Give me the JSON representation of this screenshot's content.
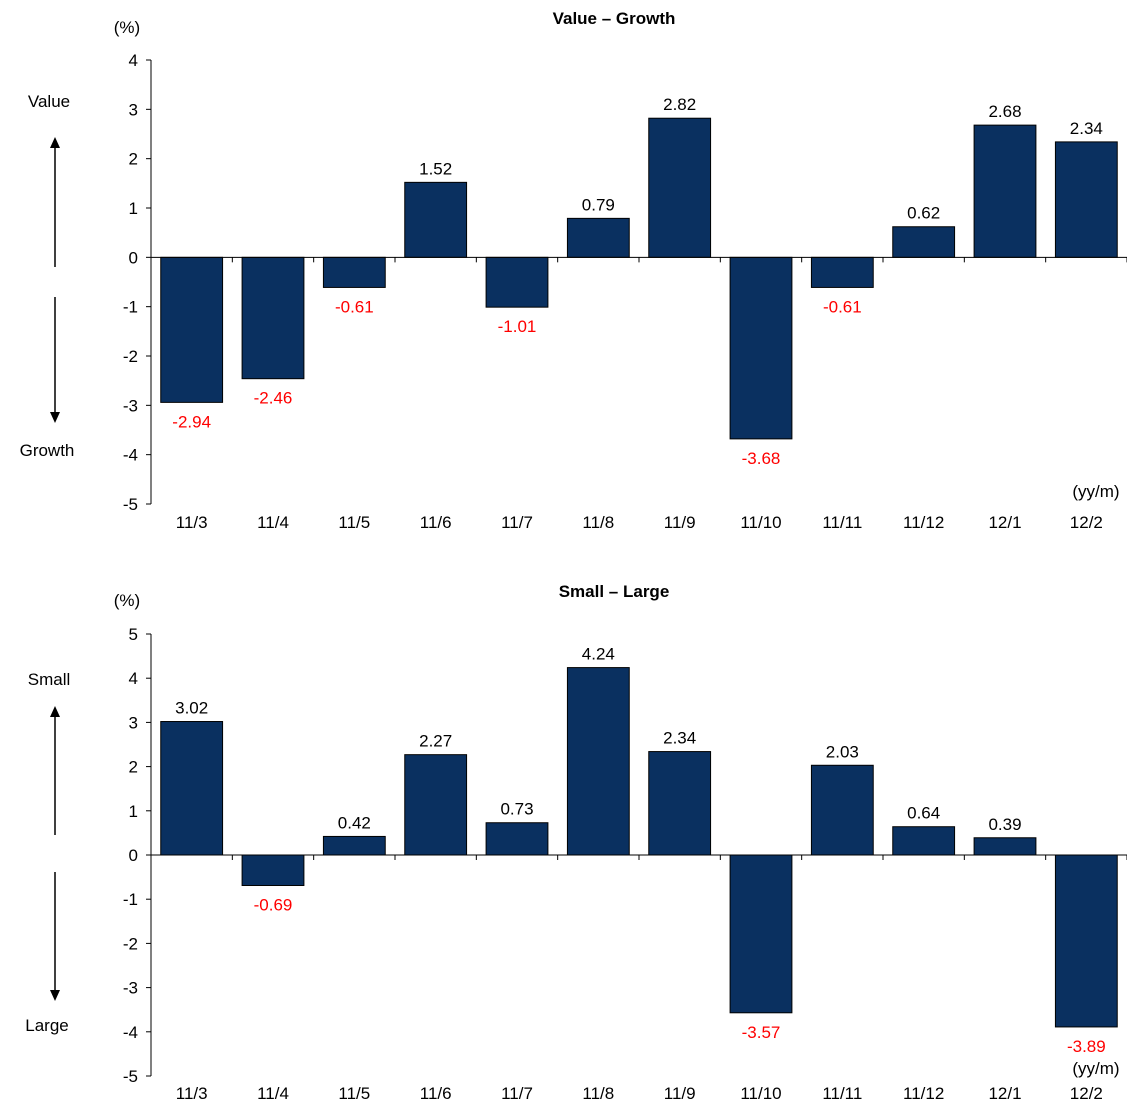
{
  "chart_data": [
    {
      "type": "bar",
      "title": "Value – Growth",
      "unit_label": "(%)",
      "x_unit_label": "(yy/m)",
      "upper_side_label": "Value",
      "lower_side_label": "Growth",
      "categories": [
        "11/3",
        "11/4",
        "11/5",
        "11/6",
        "11/7",
        "11/8",
        "11/9",
        "11/10",
        "11/11",
        "11/12",
        "12/1",
        "12/2"
      ],
      "values": [
        -2.94,
        -2.46,
        -0.61,
        1.52,
        -1.01,
        0.79,
        2.82,
        -3.68,
        -0.61,
        0.62,
        2.68,
        2.34
      ],
      "value_labels": [
        "-2.94",
        "-2.46",
        "-0.61",
        "1.52",
        "-1.01",
        "0.79",
        "2.82",
        "-3.68",
        "-0.61",
        "0.62",
        "2.68",
        "2.34"
      ],
      "ylim": [
        -5,
        4
      ],
      "yticks": [
        4,
        3,
        2,
        1,
        0,
        -1,
        -2,
        -3,
        -4,
        -5
      ],
      "ytick_labels": [
        "4",
        "3",
        "2",
        "1",
        "0",
        "-1",
        "-2",
        "-3",
        "-4",
        "-5"
      ],
      "grid": false,
      "legend": "none",
      "bar_color": "#0a3060",
      "negative_label_color": "#ff0000",
      "positive_label_color": "#000000"
    },
    {
      "type": "bar",
      "title": "Small – Large",
      "unit_label": "(%)",
      "x_unit_label": "(yy/m)",
      "upper_side_label": "Small",
      "lower_side_label": "Large",
      "categories": [
        "11/3",
        "11/4",
        "11/5",
        "11/6",
        "11/7",
        "11/8",
        "11/9",
        "11/10",
        "11/11",
        "11/12",
        "12/1",
        "12/2"
      ],
      "values": [
        3.02,
        -0.69,
        0.42,
        2.27,
        0.73,
        4.24,
        2.34,
        -3.57,
        2.03,
        0.64,
        0.39,
        -3.89
      ],
      "value_labels": [
        "3.02",
        "-0.69",
        "0.42",
        "2.27",
        "0.73",
        "4.24",
        "2.34",
        "-3.57",
        "2.03",
        "0.64",
        "0.39",
        "-3.89"
      ],
      "ylim": [
        -5,
        5
      ],
      "yticks": [
        5,
        4,
        3,
        2,
        1,
        0,
        -1,
        -2,
        -3,
        -4,
        -5
      ],
      "ytick_labels": [
        "5",
        "4",
        "3",
        "2",
        "1",
        "0",
        "-1",
        "-2",
        "-3",
        "-4",
        "-5"
      ],
      "grid": false,
      "legend": "none",
      "bar_color": "#0a3060",
      "negative_label_color": "#ff0000",
      "positive_label_color": "#000000"
    }
  ]
}
